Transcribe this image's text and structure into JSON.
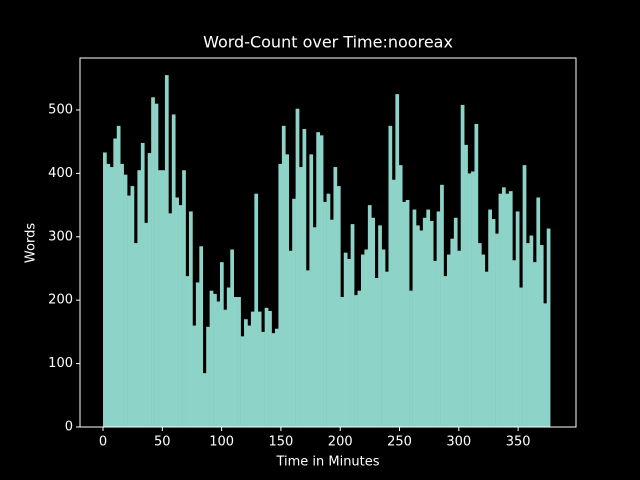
{
  "chart_data": {
    "type": "bar",
    "title": "Word-Count over Time:nooreax",
    "xlabel": "Time in Minutes",
    "ylabel": "Words",
    "color": "#8dd3c7",
    "bar_width": 2.9,
    "x": [
      0,
      2.9,
      5.8,
      8.7,
      11.6,
      14.5,
      17.4,
      20.3,
      23.2,
      26.1,
      29,
      31.9,
      34.8,
      37.7,
      40.6,
      43.5,
      46.4,
      49.3,
      52.2,
      55.1,
      58,
      60.9,
      63.8,
      66.7,
      69.6,
      72.5,
      75.4,
      78.3,
      81.2,
      84.1,
      87,
      89.9,
      92.8,
      95.7,
      98.6,
      101.5,
      104.4,
      107.3,
      110.2,
      113.1,
      116,
      118.9,
      121.8,
      124.7,
      127.6,
      130.5,
      133.4,
      136.3,
      139.2,
      142.1,
      145,
      147.9,
      150.8,
      153.7,
      156.6,
      159.5,
      162.4,
      165.3,
      168.2,
      171.1,
      174,
      176.9,
      179.8,
      182.7,
      185.6,
      188.5,
      191.4,
      194.3,
      197.2,
      200.1,
      203,
      205.9,
      208.8,
      211.7,
      214.6,
      217.5,
      220.4,
      223.3,
      226.2,
      229.1,
      232,
      234.9,
      237.8,
      240.7,
      243.6,
      246.5,
      249.4,
      252.3,
      255.2,
      258.1,
      261,
      263.9,
      266.8,
      269.7,
      272.6,
      275.5,
      278.4,
      281.3,
      284.2,
      287.1,
      290,
      292.9,
      295.8,
      298.7,
      301.6,
      304.5,
      307.4,
      310.3,
      313.2,
      316.1,
      319,
      321.9,
      324.8,
      327.7,
      330.6,
      333.5,
      336.4,
      339.3,
      342.2,
      345.1,
      348,
      350.9,
      353.8,
      356.7,
      359.6,
      362.5,
      365.4,
      368.3,
      371.2,
      374.1
    ],
    "values": [
      433,
      415,
      410,
      455,
      475,
      415,
      398,
      365,
      380,
      290,
      405,
      448,
      322,
      432,
      520,
      510,
      405,
      405,
      555,
      337,
      493,
      362,
      350,
      405,
      238,
      340,
      160,
      228,
      285,
      85,
      158,
      215,
      210,
      198,
      260,
      185,
      220,
      280,
      205,
      205,
      143,
      170,
      160,
      182,
      368,
      182,
      150,
      188,
      183,
      148,
      155,
      415,
      475,
      430,
      278,
      360,
      502,
      410,
      470,
      247,
      430,
      315,
      465,
      460,
      355,
      368,
      327,
      410,
      380,
      205,
      275,
      265,
      320,
      208,
      215,
      272,
      280,
      350,
      330,
      235,
      318,
      280,
      245,
      475,
      390,
      525,
      413,
      355,
      358,
      215,
      343,
      318,
      310,
      330,
      343,
      325,
      262,
      340,
      382,
      238,
      272,
      297,
      330,
      278,
      508,
      445,
      400,
      403,
      478,
      290,
      272,
      245,
      343,
      328,
      305,
      368,
      378,
      368,
      372,
      263,
      340,
      220,
      413,
      290,
      302,
      260,
      362,
      287,
      195,
      313
    ],
    "xlim": [
      -19.4,
      398.8
    ],
    "ylim": [
      0,
      582
    ],
    "xticks": [
      0,
      50,
      100,
      150,
      200,
      250,
      300,
      350
    ],
    "yticks": [
      0,
      100,
      200,
      300,
      400,
      500
    ]
  }
}
